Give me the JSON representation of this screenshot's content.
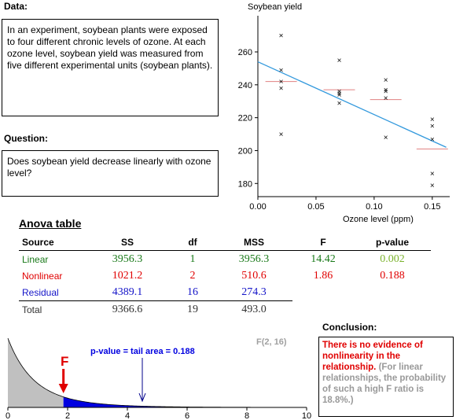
{
  "data_section": {
    "heading": "Data:",
    "text": "In an experiment, soybean plants were exposed to four different chronic levels of ozone. At each ozone level, soybean yield was measured from five different experimental units (soybean plants)."
  },
  "question_section": {
    "heading": "Question:",
    "text": "Does soybean yield decrease linearly with ozone level?"
  },
  "scatter": {
    "ylabel": "Soybean yield",
    "xlabel": "Ozone level (ppm)",
    "x_ticks": [
      "0.00",
      "0.05",
      "0.10",
      "0.15"
    ],
    "y_ticks": [
      "180",
      "200",
      "220",
      "240",
      "260"
    ]
  },
  "anova": {
    "title": "Anova table",
    "headers": [
      "Source",
      "SS",
      "df",
      "MSS",
      "F",
      "p-value"
    ],
    "rows": [
      {
        "source": "Linear",
        "ss": "3956.3",
        "df": "1",
        "mss": "3956.3",
        "f": "14.42",
        "p": "0.002"
      },
      {
        "source": "Nonlinear",
        "ss": "1021.2",
        "df": "2",
        "mss": "510.6",
        "f": "1.86",
        "p": "0.188"
      },
      {
        "source": "Residual",
        "ss": "4389.1",
        "df": "16",
        "mss": "274.3",
        "f": "",
        "p": ""
      },
      {
        "source": "Total",
        "ss": "9366.6",
        "df": "19",
        "mss": "493.0",
        "f": "",
        "p": ""
      }
    ]
  },
  "distribution": {
    "dist_label": "F(2, 16)",
    "f_marker": "F",
    "pvalue_text": "p-value = tail area = 0.188",
    "x_ticks": [
      "0",
      "2",
      "4",
      "6",
      "8",
      "10"
    ]
  },
  "conclusion": {
    "heading": "Conclusion:",
    "main_text": "There is no evidence of nonlinearity in the relationship.",
    "note_text": " (For linear relationships, the probability of such a high F ratio is 18.8%.)"
  },
  "chart_data": [
    {
      "type": "scatter",
      "title": "",
      "xlabel": "Ozone level (ppm)",
      "ylabel": "Soybean yield",
      "xlim": [
        0.0,
        0.165
      ],
      "ylim": [
        172,
        282
      ],
      "x_ticks": [
        0.0,
        0.05,
        0.1,
        0.15
      ],
      "y_ticks": [
        180,
        200,
        220,
        240,
        260
      ],
      "series": [
        {
          "points": [
            [
              0.02,
              270
            ],
            [
              0.02,
              249
            ],
            [
              0.02,
              242
            ],
            [
              0.02,
              238
            ],
            [
              0.02,
              210
            ],
            [
              0.07,
              255
            ],
            [
              0.07,
              236
            ],
            [
              0.07,
              235
            ],
            [
              0.07,
              234
            ],
            [
              0.07,
              229
            ],
            [
              0.11,
              243
            ],
            [
              0.11,
              236
            ],
            [
              0.11,
              232
            ],
            [
              0.11,
              208
            ],
            [
              0.11,
              237
            ],
            [
              0.15,
              219
            ],
            [
              0.15,
              215
            ],
            [
              0.15,
              207
            ],
            [
              0.15,
              186
            ],
            [
              0.15,
              179
            ]
          ]
        }
      ],
      "group_means": [
        [
          0.02,
          242
        ],
        [
          0.07,
          237
        ],
        [
          0.11,
          231
        ],
        [
          0.15,
          201
        ]
      ],
      "regression_line": [
        [
          0.0,
          254
        ],
        [
          0.162,
          202
        ]
      ]
    },
    {
      "type": "area",
      "title": "F(2, 16)",
      "xlim": [
        0,
        10
      ],
      "x_ticks": [
        0,
        2,
        4,
        6,
        8,
        10
      ],
      "observed_F": 1.86,
      "df": [
        2,
        16
      ],
      "shaded_tail_from": 1.86
    }
  ],
  "colors": {
    "linear": "#1a7a1a",
    "pvalue_linear": "#7cb32e",
    "nonlinear": "#e00000",
    "residual": "#1414c8",
    "tail": "#0000e0",
    "body_fill": "#c0c0c0",
    "regression": "#3399dd",
    "means": "#e08080",
    "conclusion_note": "#999999"
  }
}
